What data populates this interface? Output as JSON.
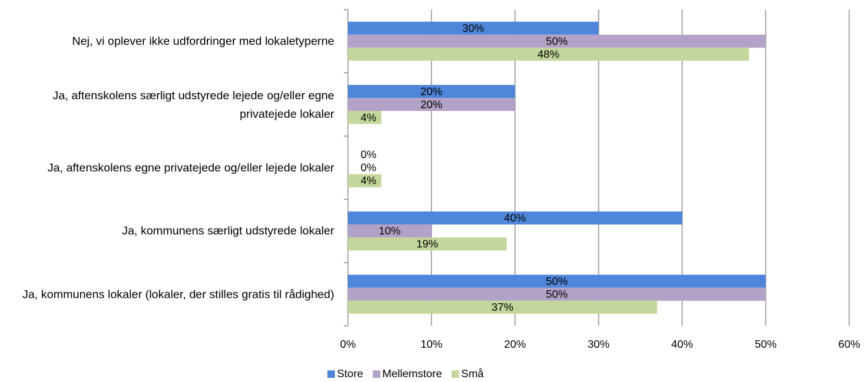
{
  "chart_data": {
    "type": "bar",
    "orientation": "horizontal",
    "categories": [
      "Nej, vi oplever ikke udfordringer med lokaletyperne",
      "Ja, aftenskolens særligt udstyrede lejede og/eller egne privatejede lokaler",
      "Ja, aftenskolens egne privatejede og/eller lejede lokaler",
      "Ja, kommunens særligt udstyrede lokaler",
      "Ja, kommunens lokaler (lokaler, der stilles gratis til rådighed)"
    ],
    "series": [
      {
        "name": "Store",
        "color": "#4f86d9",
        "values": [
          30,
          20,
          0,
          40,
          50
        ],
        "value_labels": [
          "30%",
          "20%",
          "0%",
          "40%",
          "50%"
        ]
      },
      {
        "name": "Mellemstore",
        "color": "#b3a2c7",
        "values": [
          50,
          20,
          0,
          10,
          50
        ],
        "value_labels": [
          "50%",
          "20%",
          "0%",
          "10%",
          "50%"
        ]
      },
      {
        "name": "Små",
        "color": "#c3d69b",
        "values": [
          48,
          4,
          4,
          19,
          37
        ],
        "value_labels": [
          "48%",
          "4%",
          "4%",
          "19%",
          "37%"
        ]
      }
    ],
    "xlim": [
      0,
      60
    ],
    "xticks": [
      {
        "value": 0,
        "label": "0%"
      },
      {
        "value": 10,
        "label": "10%"
      },
      {
        "value": 20,
        "label": "20%"
      },
      {
        "value": 30,
        "label": "30%"
      },
      {
        "value": 40,
        "label": "40%"
      },
      {
        "value": 50,
        "label": "50%"
      },
      {
        "value": 60,
        "label": "60%"
      }
    ],
    "grid": true,
    "legend": "bottom"
  }
}
